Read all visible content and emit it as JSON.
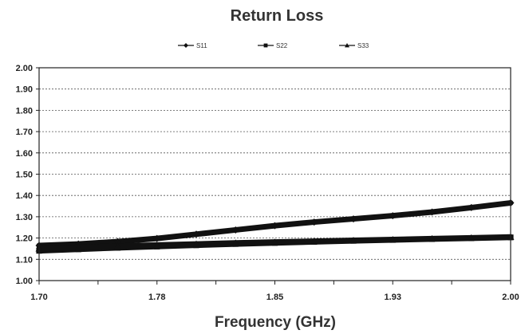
{
  "chart_data": {
    "type": "line",
    "title": "Return Loss",
    "xlabel": "Frequency (GHz)",
    "ylabel": "",
    "xlim": [
      1.7,
      2.0
    ],
    "ylim": [
      1.0,
      2.0
    ],
    "x_ticks": [
      "1.70",
      "1.78",
      "1.85",
      "1.93",
      "2.00"
    ],
    "y_ticks": [
      "2.00",
      "1.90",
      "1.80",
      "1.70",
      "1.60",
      "1.50",
      "1.40",
      "1.30",
      "1.20",
      "1.10",
      "1.00"
    ],
    "grid": "horizontal dashed",
    "legend_position": "top",
    "x": [
      1.7,
      1.725,
      1.75,
      1.775,
      1.8,
      1.825,
      1.85,
      1.875,
      1.9,
      1.925,
      1.95,
      1.975,
      2.0
    ],
    "series": [
      {
        "name": "S11",
        "marker": "diamond",
        "color": "#111111",
        "values": [
          1.165,
          1.172,
          1.183,
          1.198,
          1.218,
          1.238,
          1.258,
          1.275,
          1.29,
          1.305,
          1.322,
          1.343,
          1.365
        ]
      },
      {
        "name": "S22",
        "marker": "square",
        "color": "#111111",
        "values": [
          1.14,
          1.147,
          1.154,
          1.16,
          1.166,
          1.172,
          1.177,
          1.182,
          1.187,
          1.191,
          1.195,
          1.199,
          1.203
        ]
      },
      {
        "name": "S33",
        "marker": "triangle",
        "color": "#111111",
        "values": [
          1.15,
          1.156,
          1.162,
          1.167,
          1.172,
          1.177,
          1.181,
          1.185,
          1.189,
          1.193,
          1.197,
          1.201,
          1.205
        ]
      }
    ]
  }
}
